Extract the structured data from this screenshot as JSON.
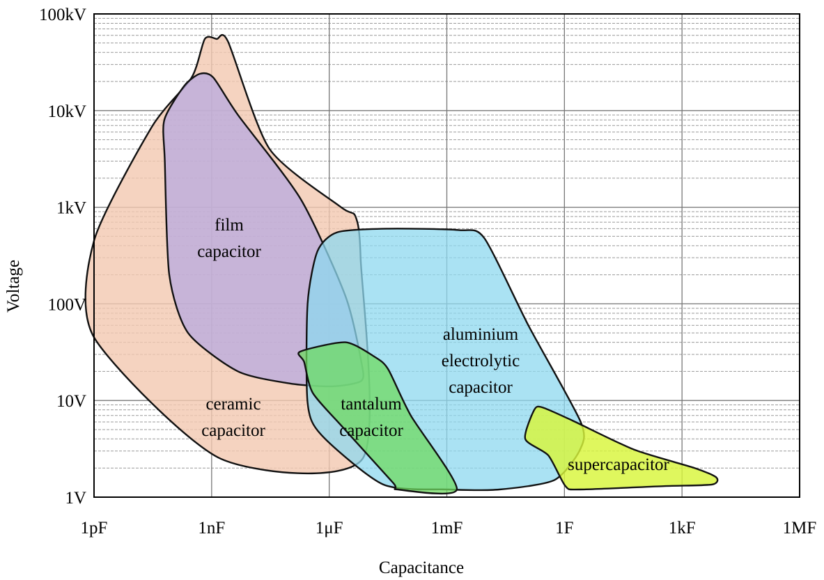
{
  "chart_data": {
    "type": "area",
    "title": "",
    "xlabel": "Capacitance",
    "ylabel": "Voltage",
    "x_scale": "log",
    "y_scale": "log",
    "x_unit": "F",
    "y_unit": "V",
    "xlim": [
      1e-12,
      1000000.0
    ],
    "ylim": [
      1,
      100000
    ],
    "grid": "on (major vertical and horizontal, minor horizontal dashed)",
    "legend": "none (regions labelled directly)",
    "x_ticks": [
      {
        "value": 1e-12,
        "label": "1pF"
      },
      {
        "value": 1e-09,
        "label": "1nF"
      },
      {
        "value": 1e-06,
        "label": "1μF"
      },
      {
        "value": 0.001,
        "label": "1mF"
      },
      {
        "value": 1,
        "label": "1F"
      },
      {
        "value": 1000.0,
        "label": "1kF"
      },
      {
        "value": 1000000.0,
        "label": "1MF"
      }
    ],
    "y_ticks": [
      {
        "value": 1,
        "label": "1V"
      },
      {
        "value": 10,
        "label": "10V"
      },
      {
        "value": 100,
        "label": "100V"
      },
      {
        "value": 1000,
        "label": "1kV"
      },
      {
        "value": 10000,
        "label": "10kV"
      },
      {
        "value": 100000,
        "label": "100kV"
      }
    ],
    "series": [
      {
        "name": "ceramic capacitor",
        "label_lines": [
          "ceramic",
          "capacitor"
        ],
        "color": "#f2c8b0",
        "opacity": 0.8,
        "boundary": [
          [
            1e-12,
            450
          ],
          [
            3e-11,
            6800
          ],
          [
            3.1e-10,
            22000
          ],
          [
            6.7e-10,
            55000
          ],
          [
            1.35e-09,
            55000
          ],
          [
            2.6e-09,
            52000
          ],
          [
            3e-08,
            4000
          ],
          [
            2e-06,
            1000
          ],
          [
            4.7e-06,
            800
          ],
          [
            6.3e-06,
            300
          ],
          [
            7.1e-06,
            2.5
          ],
          [
            1.7e-09,
            2.5
          ],
          [
            1e-12,
            45
          ]
        ]
      },
      {
        "name": "film capacitor",
        "label_lines": [
          "film",
          "capacitor"
        ],
        "color": "#b4a6e3",
        "opacity": 0.7,
        "boundary": [
          [
            6.2e-11,
            8000
          ],
          [
            6.4e-11,
            3000
          ],
          [
            8.3e-11,
            200
          ],
          [
            2.5e-10,
            50
          ],
          [
            4.7e-09,
            20
          ],
          [
            1e-07,
            15
          ],
          [
            1.2e-06,
            14
          ],
          [
            6.6e-06,
            16
          ],
          [
            6.6e-06,
            25
          ],
          [
            2.6e-06,
            120
          ],
          [
            1.9e-07,
            1200
          ],
          [
            4.7e-09,
            9000
          ],
          [
            1.1e-09,
            22000
          ],
          [
            5e-10,
            24000
          ],
          [
            2e-10,
            18000
          ]
        ]
      },
      {
        "name": "aluminium electrolytic capacitor",
        "label_lines": [
          "aluminium",
          "electrolytic",
          "capacitor"
        ],
        "color": "#8dd8ef",
        "opacity": 0.75,
        "boundary": [
          [
            2.8e-07,
            9.5
          ],
          [
            2.8e-07,
            100
          ],
          [
            5e-07,
            350
          ],
          [
            1.6e-06,
            550
          ],
          [
            2.9e-05,
            600
          ],
          [
            0.002,
            580
          ],
          [
            0.009,
            480
          ],
          [
            0.12,
            60
          ],
          [
            2.6,
            6
          ],
          [
            2.5,
            3.1
          ],
          [
            0.55,
            1.5
          ],
          [
            0.022,
            1.2
          ],
          [
            0.0011,
            1.2
          ],
          [
            2.4e-05,
            1.35
          ],
          [
            6.3e-07,
            4.4
          ]
        ]
      },
      {
        "name": "tantalum capacitor",
        "label_lines": [
          "tantalum",
          "capacitor"
        ],
        "color": "#6fd960",
        "opacity": 0.75,
        "boundary": [
          [
            1.8e-07,
            32
          ],
          [
            2.6e-06,
            40
          ],
          [
            1.5e-05,
            28
          ],
          [
            3.2e-05,
            21
          ],
          [
            0.00012,
            7
          ],
          [
            0.0018,
            1.2
          ],
          [
            5.6e-05,
            1.2
          ],
          [
            4.3e-05,
            1.4
          ],
          [
            2.3e-06,
            5.2
          ],
          [
            3.8e-07,
            12
          ],
          [
            2.3e-07,
            25
          ]
        ]
      },
      {
        "name": "supercapacitor",
        "label_lines": [
          "supercapacitor"
        ],
        "color": "#d8f53a",
        "opacity": 0.82,
        "boundary": [
          [
            0.1,
            4
          ],
          [
            0.17,
            8
          ],
          [
            0.27,
            8.5
          ],
          [
            1.6,
            6.2
          ],
          [
            60,
            3.1
          ],
          [
            2100,
            2
          ],
          [
            7500,
            1.6
          ],
          [
            5800,
            1.35
          ],
          [
            350,
            1.3
          ],
          [
            2.4,
            1.2
          ],
          [
            1.06,
            1.3
          ],
          [
            0.39,
            2.7
          ]
        ]
      }
    ]
  }
}
